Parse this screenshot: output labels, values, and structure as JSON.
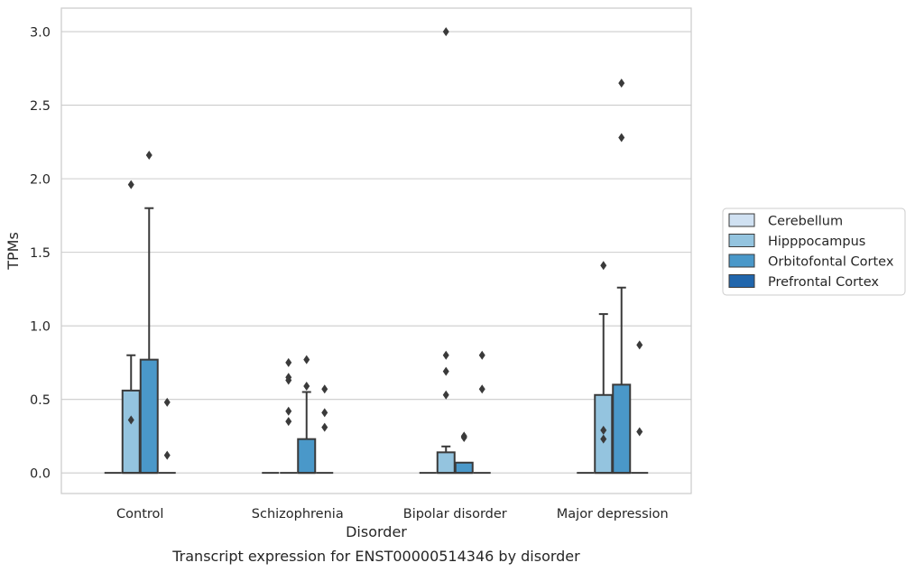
{
  "chart_data": {
    "type": "box",
    "caption": "Transcript expression for ENST00000514346 by disorder",
    "xlabel": "Disorder",
    "ylabel": "TPMs",
    "ylim": [
      -0.14,
      3.16
    ],
    "yticks": [
      "0.0",
      "0.5",
      "1.0",
      "1.5",
      "2.0",
      "2.5",
      "3.0"
    ],
    "ytick_values": [
      0,
      0.5,
      1.0,
      1.5,
      2.0,
      2.5,
      3.0
    ],
    "grid": true,
    "legend_placement": "right",
    "categories": [
      "Control",
      "Schizophrenia",
      "Bipolar disorder",
      "Major depression"
    ],
    "series": [
      {
        "name": "Cerebellum",
        "color": "#d0e1f2",
        "boxes": [
          {
            "q1": 0,
            "median": 0,
            "q3": 0,
            "whisker_low": 0,
            "whisker_high": 0,
            "outliers": []
          },
          {
            "q1": 0,
            "median": 0,
            "q3": 0,
            "whisker_low": 0,
            "whisker_high": 0,
            "outliers": []
          },
          {
            "q1": 0,
            "median": 0,
            "q3": 0,
            "whisker_low": 0,
            "whisker_high": 0,
            "outliers": []
          },
          {
            "q1": 0,
            "median": 0,
            "q3": 0,
            "whisker_low": 0,
            "whisker_high": 0,
            "outliers": []
          }
        ]
      },
      {
        "name": "Hipppocampus",
        "color": "#94c4df",
        "boxes": [
          {
            "q1": 0,
            "median": 0,
            "q3": 0.56,
            "whisker_low": 0,
            "whisker_high": 0.8,
            "outliers": [
              0.36,
              1.96
            ]
          },
          {
            "q1": 0,
            "median": 0,
            "q3": 0,
            "whisker_low": 0,
            "whisker_high": 0,
            "outliers": [
              0.35,
              0.42,
              0.63,
              0.65,
              0.75
            ]
          },
          {
            "q1": 0,
            "median": 0,
            "q3": 0.14,
            "whisker_low": 0,
            "whisker_high": 0.18,
            "outliers": [
              0.53,
              0.69,
              0.8,
              3.0
            ]
          },
          {
            "q1": 0,
            "median": 0,
            "q3": 0.53,
            "whisker_low": 0,
            "whisker_high": 1.08,
            "outliers": [
              0.23,
              0.29,
              1.41
            ]
          }
        ]
      },
      {
        "name": "Orbitofontal Cortex",
        "color": "#4a98c9",
        "boxes": [
          {
            "q1": 0,
            "median": 0,
            "q3": 0.77,
            "whisker_low": 0,
            "whisker_high": 1.8,
            "outliers": [
              2.16
            ]
          },
          {
            "q1": 0,
            "median": 0,
            "q3": 0.23,
            "whisker_low": 0,
            "whisker_high": 0.55,
            "outliers": [
              0.59,
              0.77
            ]
          },
          {
            "q1": 0,
            "median": 0,
            "q3": 0.07,
            "whisker_low": 0,
            "whisker_high": 0.07,
            "outliers": [
              0.24,
              0.25
            ]
          },
          {
            "q1": 0,
            "median": 0,
            "q3": 0.6,
            "whisker_low": 0,
            "whisker_high": 1.26,
            "outliers": [
              2.28,
              2.65
            ]
          }
        ]
      },
      {
        "name": "Prefrontal Cortex",
        "color": "#2166ac",
        "boxes": [
          {
            "q1": 0,
            "median": 0,
            "q3": 0,
            "whisker_low": 0,
            "whisker_high": 0,
            "outliers": [
              0.12,
              0.48
            ]
          },
          {
            "q1": 0,
            "median": 0,
            "q3": 0,
            "whisker_low": 0,
            "whisker_high": 0,
            "outliers": [
              0.31,
              0.41,
              0.57
            ]
          },
          {
            "q1": 0,
            "median": 0,
            "q3": 0,
            "whisker_low": 0,
            "whisker_high": 0,
            "outliers": [
              0.57,
              0.8
            ]
          },
          {
            "q1": 0,
            "median": 0,
            "q3": 0,
            "whisker_low": 0,
            "whisker_high": 0,
            "outliers": [
              0.28,
              0.87
            ]
          }
        ]
      }
    ]
  }
}
